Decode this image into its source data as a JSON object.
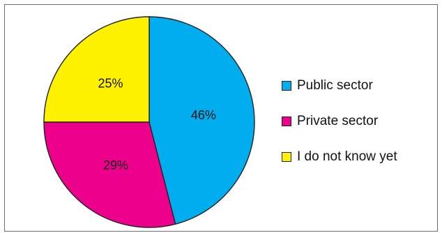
{
  "chart_data": {
    "type": "pie",
    "slices": [
      {
        "label": "Public sector",
        "value": 46,
        "value_label": "46%",
        "color": "#00aeef"
      },
      {
        "label": "Private sector",
        "value": 29,
        "value_label": "29%",
        "color": "#ec008c"
      },
      {
        "label": "I do not know yet",
        "value": 25,
        "value_label": "25%",
        "color": "#fff200"
      }
    ],
    "start_angle": "12 o'clock",
    "direction": "clockwise",
    "legend_position": "right",
    "slice_border_color": "#222222"
  }
}
